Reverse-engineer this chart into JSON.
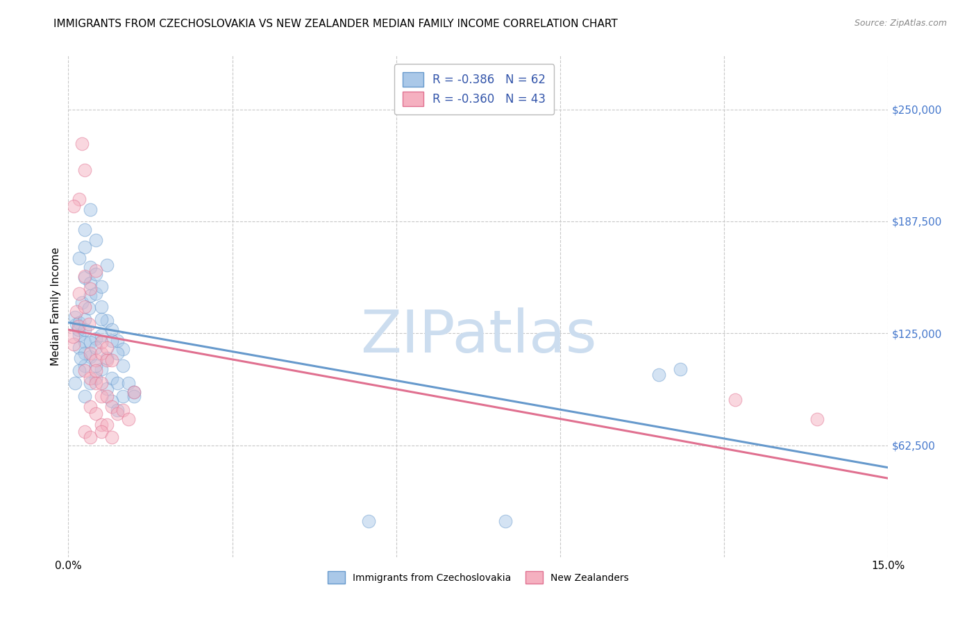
{
  "title": "IMMIGRANTS FROM CZECHOSLOVAKIA VS NEW ZEALANDER MEDIAN FAMILY INCOME CORRELATION CHART",
  "source": "Source: ZipAtlas.com",
  "ylabel": "Median Family Income",
  "xlim": [
    0.0,
    0.15
  ],
  "ylim": [
    0,
    280000
  ],
  "xticks": [
    0.0,
    0.03,
    0.06,
    0.09,
    0.12,
    0.15
  ],
  "xticklabels": [
    "0.0%",
    "",
    "",
    "",
    "",
    "15.0%"
  ],
  "ytick_positions": [
    62500,
    125000,
    187500,
    250000
  ],
  "ytick_labels": [
    "$62,500",
    "$125,000",
    "$187,500",
    "$250,000"
  ],
  "grid_color": "#c8c8c8",
  "background_color": "#ffffff",
  "watermark": "ZIPatlas",
  "watermark_color": "#ccddef",
  "blue_color": "#aac8e8",
  "blue_edge": "#6699cc",
  "pink_color": "#f5b0c0",
  "pink_edge": "#e07090",
  "blue_points": [
    [
      0.0015,
      130000
    ],
    [
      0.002,
      124000
    ],
    [
      0.003,
      120000
    ],
    [
      0.0012,
      134000
    ],
    [
      0.002,
      131000
    ],
    [
      0.0018,
      127000
    ],
    [
      0.003,
      156000
    ],
    [
      0.0025,
      142000
    ],
    [
      0.004,
      146000
    ],
    [
      0.003,
      133000
    ],
    [
      0.002,
      117000
    ],
    [
      0.0038,
      139000
    ],
    [
      0.003,
      127000
    ],
    [
      0.005,
      122000
    ],
    [
      0.004,
      162000
    ],
    [
      0.005,
      177000
    ],
    [
      0.003,
      173000
    ],
    [
      0.002,
      167000
    ],
    [
      0.004,
      153000
    ],
    [
      0.003,
      183000
    ],
    [
      0.005,
      147000
    ],
    [
      0.006,
      140000
    ],
    [
      0.007,
      132000
    ],
    [
      0.004,
      194000
    ],
    [
      0.005,
      158000
    ],
    [
      0.006,
      151000
    ],
    [
      0.004,
      112000
    ],
    [
      0.003,
      107000
    ],
    [
      0.002,
      104000
    ],
    [
      0.0012,
      97000
    ],
    [
      0.005,
      100000
    ],
    [
      0.006,
      105000
    ],
    [
      0.007,
      111000
    ],
    [
      0.003,
      114000
    ],
    [
      0.004,
      120000
    ],
    [
      0.0022,
      111000
    ],
    [
      0.005,
      117000
    ],
    [
      0.006,
      124000
    ],
    [
      0.008,
      127000
    ],
    [
      0.009,
      121000
    ],
    [
      0.007,
      163000
    ],
    [
      0.01,
      116000
    ],
    [
      0.006,
      133000
    ],
    [
      0.008,
      121000
    ],
    [
      0.009,
      114000
    ],
    [
      0.005,
      107000
    ],
    [
      0.004,
      97000
    ],
    [
      0.003,
      90000
    ],
    [
      0.007,
      94000
    ],
    [
      0.008,
      100000
    ],
    [
      0.01,
      107000
    ],
    [
      0.009,
      97000
    ],
    [
      0.011,
      97000
    ],
    [
      0.012,
      92000
    ],
    [
      0.01,
      90000
    ],
    [
      0.008,
      87000
    ],
    [
      0.009,
      82000
    ],
    [
      0.012,
      90000
    ],
    [
      0.055,
      20000
    ],
    [
      0.08,
      20000
    ],
    [
      0.112,
      105000
    ],
    [
      0.108,
      102000
    ]
  ],
  "pink_points": [
    [
      0.001,
      119000
    ],
    [
      0.0018,
      129000
    ],
    [
      0.0008,
      123000
    ],
    [
      0.0015,
      137000
    ],
    [
      0.003,
      216000
    ],
    [
      0.0025,
      231000
    ],
    [
      0.002,
      200000
    ],
    [
      0.001,
      196000
    ],
    [
      0.003,
      157000
    ],
    [
      0.004,
      150000
    ],
    [
      0.002,
      147000
    ],
    [
      0.003,
      140000
    ],
    [
      0.004,
      114000
    ],
    [
      0.005,
      110000
    ],
    [
      0.003,
      104000
    ],
    [
      0.004,
      100000
    ],
    [
      0.005,
      97000
    ],
    [
      0.006,
      90000
    ],
    [
      0.004,
      84000
    ],
    [
      0.005,
      80000
    ],
    [
      0.006,
      74000
    ],
    [
      0.003,
      70000
    ],
    [
      0.004,
      67000
    ],
    [
      0.005,
      160000
    ],
    [
      0.006,
      114000
    ],
    [
      0.007,
      110000
    ],
    [
      0.005,
      104000
    ],
    [
      0.0038,
      130000
    ],
    [
      0.006,
      120000
    ],
    [
      0.007,
      117000
    ],
    [
      0.008,
      110000
    ],
    [
      0.006,
      97000
    ],
    [
      0.007,
      90000
    ],
    [
      0.008,
      84000
    ],
    [
      0.009,
      80000
    ],
    [
      0.007,
      74000
    ],
    [
      0.006,
      70000
    ],
    [
      0.008,
      67000
    ],
    [
      0.01,
      82000
    ],
    [
      0.011,
      77000
    ],
    [
      0.012,
      92000
    ],
    [
      0.122,
      88000
    ],
    [
      0.137,
      77000
    ]
  ],
  "blue_trend_x": [
    0.0,
    0.15
  ],
  "blue_trend_y": [
    131000,
    50000
  ],
  "pink_trend_x": [
    0.0,
    0.15
  ],
  "pink_trend_y": [
    127000,
    44000
  ],
  "R_blue": "-0.386",
  "N_blue": "62",
  "R_pink": "-0.360",
  "N_pink": "43",
  "legend_text_color": "#3355aa",
  "title_fontsize": 11,
  "tick_fontsize": 11,
  "legend_fontsize": 12,
  "ytick_color": "#4477cc",
  "scatter_size": 180,
  "scatter_alpha": 0.5,
  "line_width": 2.2
}
